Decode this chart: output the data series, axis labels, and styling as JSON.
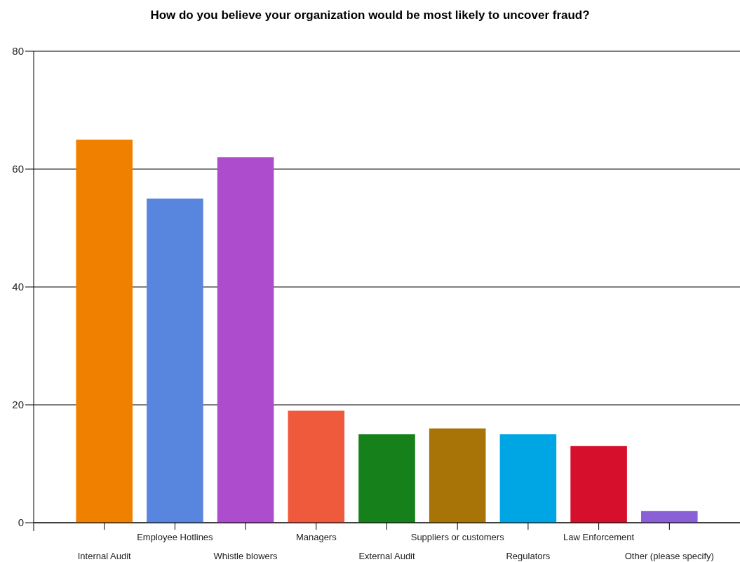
{
  "chart_data": {
    "type": "bar",
    "title": "How do you believe your organization would be most likely to uncover fraud?",
    "categories": [
      "Internal Audit",
      "Employee Hotlines",
      "Whistle blowers",
      "Managers",
      "External Audit",
      "Suppliers or customers",
      "Regulators",
      "Law Enforcement",
      "Other (please specify)"
    ],
    "values": [
      65,
      55,
      62,
      19,
      15,
      16,
      15,
      13,
      2
    ],
    "colors": [
      "#f08000",
      "#5885de",
      "#ad4ccc",
      "#f05a3c",
      "#16801a",
      "#a87408",
      "#00a6e4",
      "#d6102c",
      "#8a60d6"
    ],
    "ylim": [
      0,
      80
    ],
    "yticks": [
      0,
      20,
      40,
      60,
      80
    ],
    "grid": "y"
  }
}
